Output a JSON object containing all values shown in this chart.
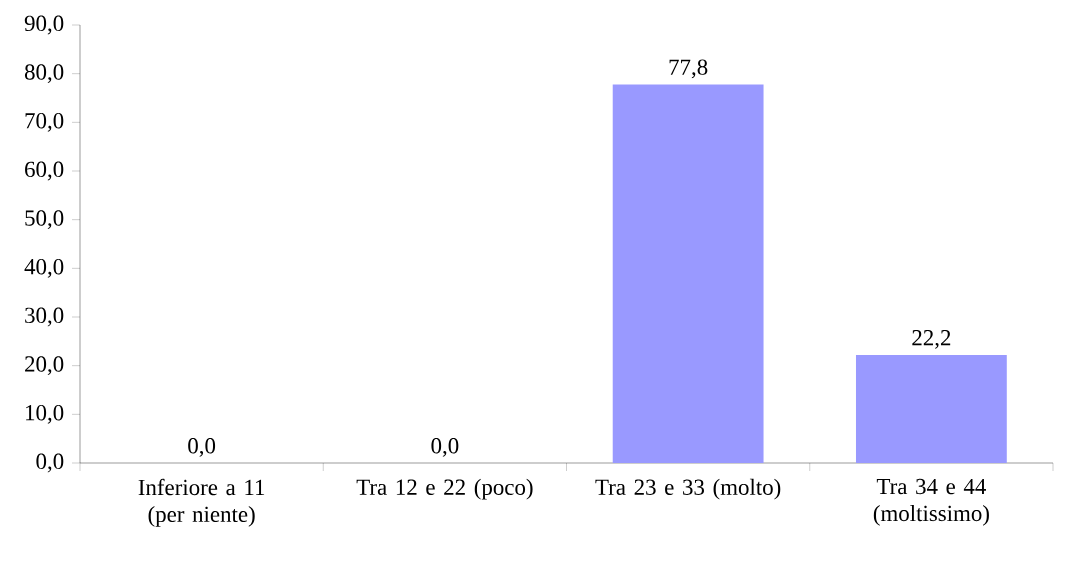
{
  "chart_data": {
    "type": "bar",
    "categories": [
      "Inferiore a 11 (per niente)",
      "Tra 12 e 22 (poco)",
      "Tra 23 e 33 (molto)",
      "Tra 34 e 44 (moltissimo)"
    ],
    "values": [
      0,
      0,
      77.8,
      22.2
    ],
    "value_labels": [
      "0,0",
      "0,0",
      "77,8",
      "22,2"
    ],
    "color": "#9999ff",
    "ylim": [
      0,
      90
    ],
    "yticks": [
      {
        "value": 0,
        "label": "0,0"
      },
      {
        "value": 10,
        "label": "10,0"
      },
      {
        "value": 20,
        "label": "20,0"
      },
      {
        "value": 30,
        "label": "30,0"
      },
      {
        "value": 40,
        "label": "40,0"
      },
      {
        "value": 50,
        "label": "50,0"
      },
      {
        "value": 60,
        "label": "60,0"
      },
      {
        "value": 70,
        "label": "70,0"
      },
      {
        "value": 80,
        "label": "80,0"
      },
      {
        "value": 90,
        "label": "90,0"
      }
    ],
    "grid": false
  }
}
